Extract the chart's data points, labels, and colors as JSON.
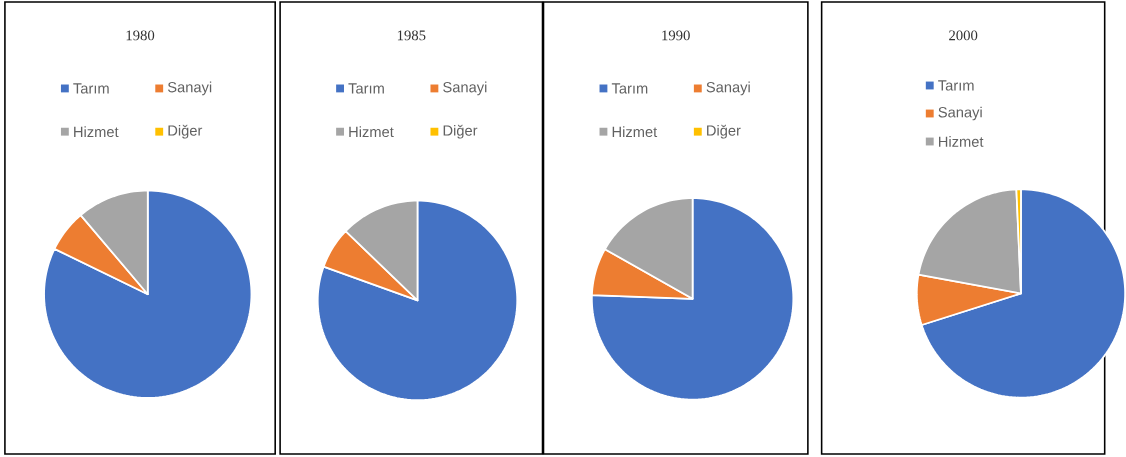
{
  "chart_data": [
    {
      "type": "pie",
      "title": "1980",
      "categories": [
        "Tarım",
        "Sanayi",
        "Hizmet",
        "Diğer"
      ],
      "values": [
        82.2,
        6.6,
        11.2,
        0
      ],
      "colors": [
        "#4472c4",
        "#ed7d31",
        "#a5a5a5",
        "#ffc000"
      ],
      "legend": "top"
    },
    {
      "type": "pie",
      "title": "1985",
      "categories": [
        "Tarım",
        "Sanayi",
        "Hizmet",
        "Diğer"
      ],
      "values": [
        80.5,
        6.7,
        12.8,
        0
      ],
      "colors": [
        "#4472c4",
        "#ed7d31",
        "#a5a5a5",
        "#ffc000"
      ],
      "legend": "top"
    },
    {
      "type": "pie",
      "title": "1990",
      "categories": [
        "Tarım",
        "Sanayi",
        "Hizmet",
        "Diğer"
      ],
      "values": [
        75.6,
        7.6,
        16.8,
        0
      ],
      "colors": [
        "#4472c4",
        "#ed7d31",
        "#a5a5a5",
        "#ffc000"
      ],
      "legend": "top"
    },
    {
      "type": "pie",
      "title": "2000",
      "categories": [
        "Tarım",
        "Sanayi",
        "Hizmet",
        null
      ],
      "values": [
        70.1,
        7.8,
        21.4,
        0.7
      ],
      "colors": [
        "#4472c4",
        "#ed7d31",
        "#a5a5a5",
        "#ffc000"
      ],
      "legend": "top"
    }
  ]
}
